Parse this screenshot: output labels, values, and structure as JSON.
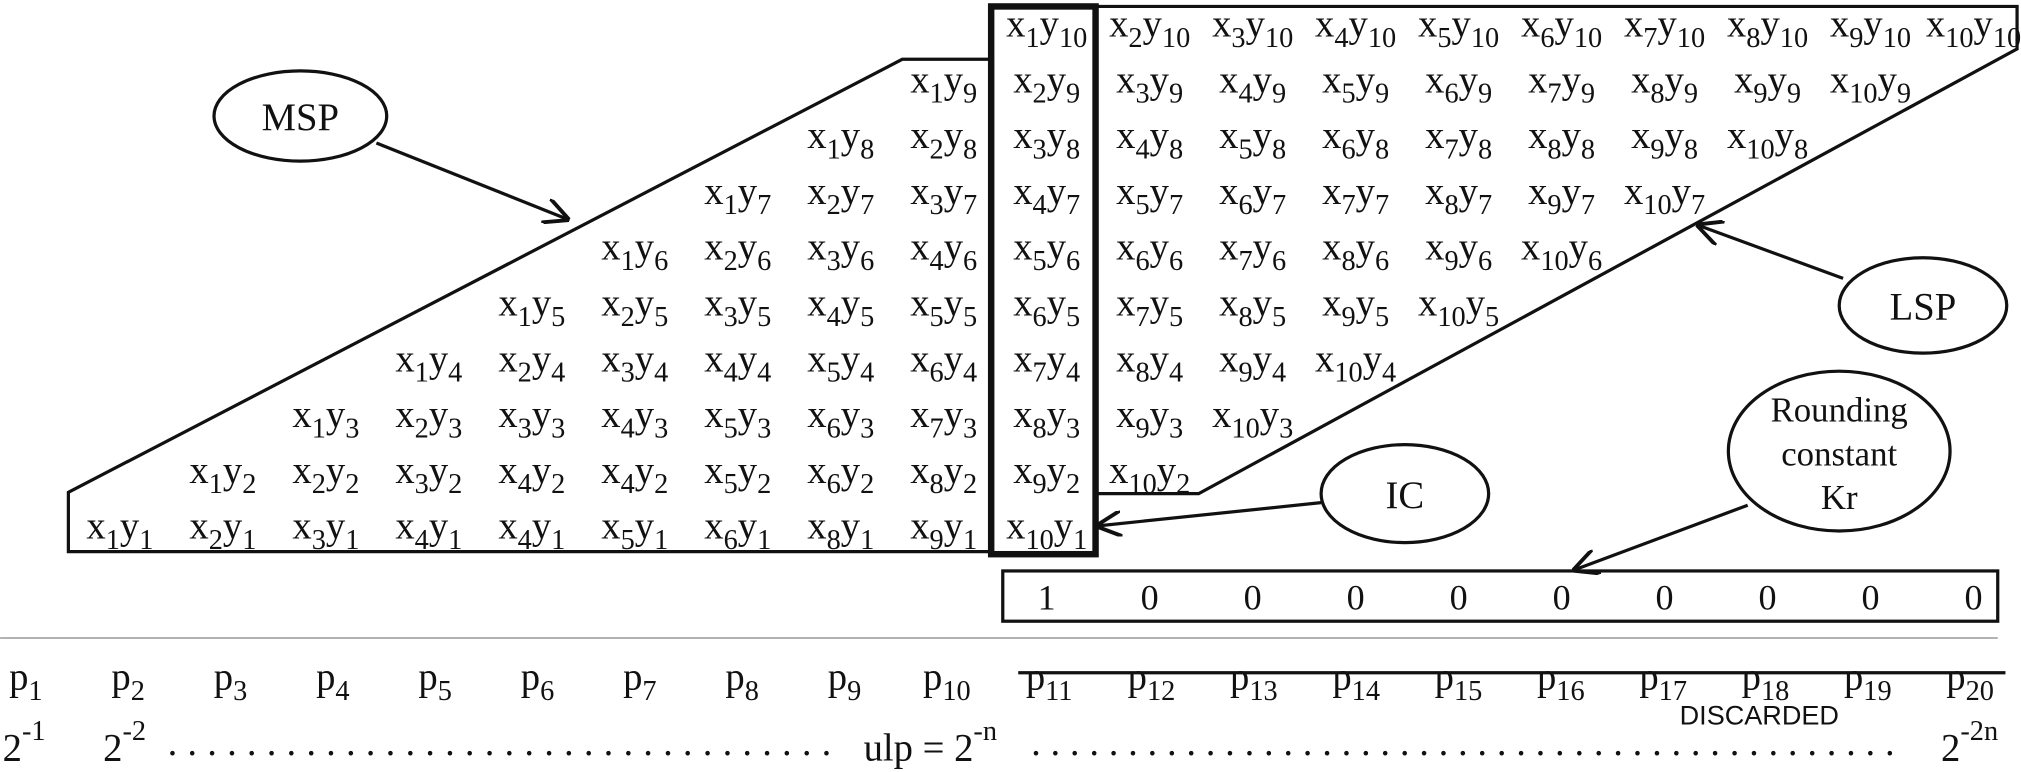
{
  "symbols": {
    "x": "x",
    "y": "y",
    "p": "p"
  },
  "partial_products": [
    [
      [
        "1",
        "10"
      ],
      [
        "2",
        "10"
      ],
      [
        "3",
        "10"
      ],
      [
        "4",
        "10"
      ],
      [
        "5",
        "10"
      ],
      [
        "6",
        "10"
      ],
      [
        "7",
        "10"
      ],
      [
        "8",
        "10"
      ],
      [
        "9",
        "10"
      ],
      [
        "10",
        "10"
      ]
    ],
    [
      [
        "1",
        "9"
      ],
      [
        "2",
        "9"
      ],
      [
        "3",
        "9"
      ],
      [
        "4",
        "9"
      ],
      [
        "5",
        "9"
      ],
      [
        "6",
        "9"
      ],
      [
        "7",
        "9"
      ],
      [
        "8",
        "9"
      ],
      [
        "9",
        "9"
      ],
      [
        "10",
        "9"
      ]
    ],
    [
      [
        "1",
        "8"
      ],
      [
        "2",
        "8"
      ],
      [
        "3",
        "8"
      ],
      [
        "4",
        "8"
      ],
      [
        "5",
        "8"
      ],
      [
        "6",
        "8"
      ],
      [
        "7",
        "8"
      ],
      [
        "8",
        "8"
      ],
      [
        "9",
        "8"
      ],
      [
        "10",
        "8"
      ]
    ],
    [
      [
        "1",
        "7"
      ],
      [
        "2",
        "7"
      ],
      [
        "3",
        "7"
      ],
      [
        "4",
        "7"
      ],
      [
        "5",
        "7"
      ],
      [
        "6",
        "7"
      ],
      [
        "7",
        "7"
      ],
      [
        "8",
        "7"
      ],
      [
        "9",
        "7"
      ],
      [
        "10",
        "7"
      ]
    ],
    [
      [
        "1",
        "6"
      ],
      [
        "2",
        "6"
      ],
      [
        "3",
        "6"
      ],
      [
        "4",
        "6"
      ],
      [
        "5",
        "6"
      ],
      [
        "6",
        "6"
      ],
      [
        "7",
        "6"
      ],
      [
        "8",
        "6"
      ],
      [
        "9",
        "6"
      ],
      [
        "10",
        "6"
      ]
    ],
    [
      [
        "1",
        "5"
      ],
      [
        "2",
        "5"
      ],
      [
        "3",
        "5"
      ],
      [
        "4",
        "5"
      ],
      [
        "5",
        "5"
      ],
      [
        "6",
        "5"
      ],
      [
        "7",
        "5"
      ],
      [
        "8",
        "5"
      ],
      [
        "9",
        "5"
      ],
      [
        "10",
        "5"
      ]
    ],
    [
      [
        "1",
        "4"
      ],
      [
        "2",
        "4"
      ],
      [
        "3",
        "4"
      ],
      [
        "4",
        "4"
      ],
      [
        "5",
        "4"
      ],
      [
        "6",
        "4"
      ],
      [
        "7",
        "4"
      ],
      [
        "8",
        "4"
      ],
      [
        "9",
        "4"
      ],
      [
        "10",
        "4"
      ]
    ],
    [
      [
        "1",
        "3"
      ],
      [
        "2",
        "3"
      ],
      [
        "3",
        "3"
      ],
      [
        "4",
        "3"
      ],
      [
        "5",
        "3"
      ],
      [
        "6",
        "3"
      ],
      [
        "7",
        "3"
      ],
      [
        "8",
        "3"
      ],
      [
        "9",
        "3"
      ],
      [
        "10",
        "3"
      ]
    ],
    [
      [
        "1",
        "2"
      ],
      [
        "2",
        "2"
      ],
      [
        "3",
        "2"
      ],
      [
        "4",
        "2"
      ],
      [
        "4",
        "2"
      ],
      [
        "5",
        "2"
      ],
      [
        "6",
        "2"
      ],
      [
        "8",
        "2"
      ],
      [
        "9",
        "2"
      ],
      [
        "10",
        "2"
      ]
    ],
    [
      [
        "1",
        "1"
      ],
      [
        "2",
        "1"
      ],
      [
        "3",
        "1"
      ],
      [
        "4",
        "1"
      ],
      [
        "4",
        "1"
      ],
      [
        "5",
        "1"
      ],
      [
        "6",
        "1"
      ],
      [
        "8",
        "1"
      ],
      [
        "9",
        "1"
      ],
      [
        "10",
        "1"
      ]
    ]
  ],
  "labels": {
    "msp": "MSP",
    "lsp": "LSP",
    "ic": "IC",
    "rounding": [
      "Rounding",
      "constant",
      "Kr"
    ]
  },
  "rounding_constant": [
    1,
    0,
    0,
    0,
    0,
    0,
    0,
    0,
    0,
    0
  ],
  "bit_positions": [
    "1",
    "2",
    "3",
    "4",
    "5",
    "6",
    "7",
    "8",
    "9",
    "10",
    "11",
    "12",
    "13",
    "14",
    "15",
    "16",
    "17",
    "18",
    "19",
    "20"
  ],
  "discarded": "DISCARDED",
  "weights": {
    "first": {
      "base": "2",
      "exp": "-1"
    },
    "second": {
      "base": "2",
      "exp": "-2"
    },
    "dots_left": ". . . . . . . . . . . . . . . . . . . . . . . . . . . . . . . . . .",
    "ulp": {
      "label": "ulp = ",
      "base": "2",
      "exp": "-n"
    },
    "dots_right": ". . . . . . . . . . . . . . . . . . . . . . . . . . . . . . . . . . . . . . . . . . . . .",
    "last": {
      "base": "2",
      "exp": "-2n"
    }
  }
}
